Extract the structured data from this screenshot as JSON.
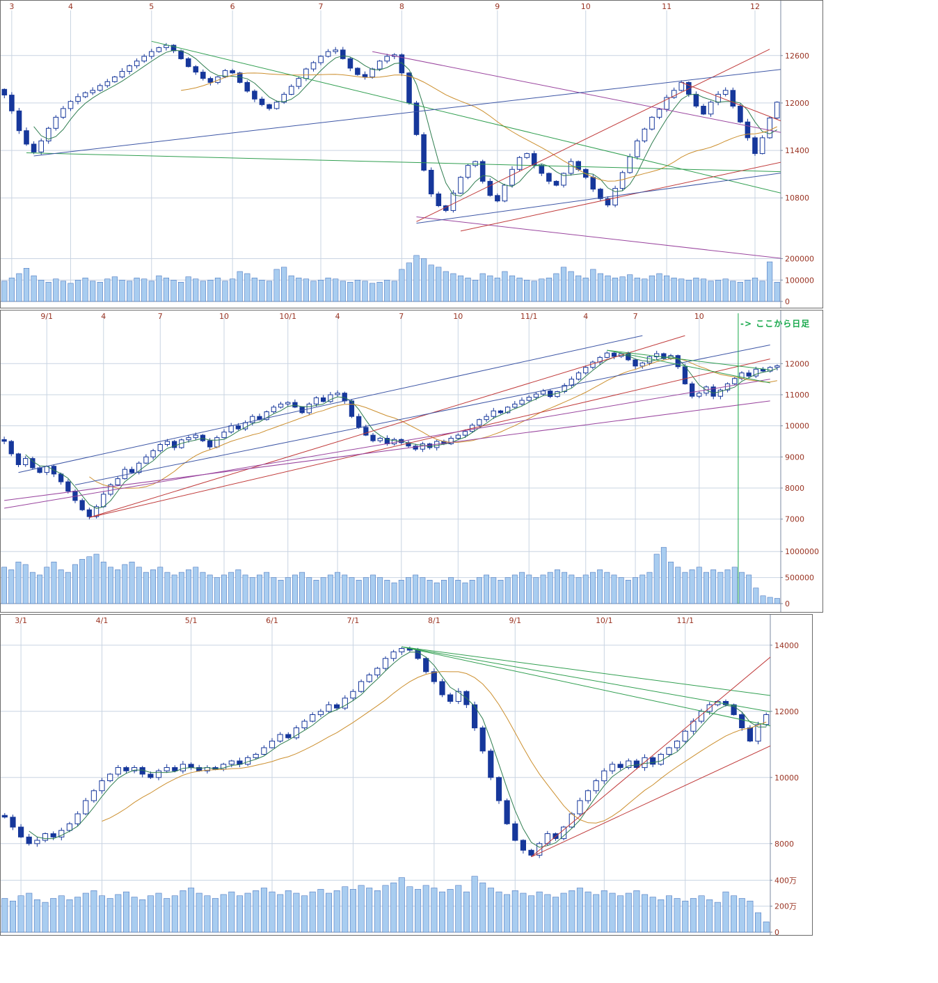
{
  "annotation": {
    "text": "-> ここから日足",
    "color": "#17a84b"
  },
  "toolbar": {
    "icons": [
      {
        "name": "orange-button",
        "color": "#f0a500",
        "border": "#b87e10"
      },
      {
        "name": "grey-button",
        "color": "#efefef",
        "border": "#8a8a8a"
      }
    ]
  },
  "colors": {
    "candle_up": "#ffffff",
    "candle_down": "#16379b",
    "candle_line": "#16379b",
    "volume_fill": "#a9cdf0",
    "volume_stroke": "#4d79c0",
    "grid": "#c9d4e2",
    "axis_text": "#993322",
    "frame": "#7b8aa0"
  },
  "chart_data": [
    {
      "name": "top-daily-candlestick",
      "type": "candlestick",
      "x_labels": [
        {
          "label": "3",
          "index": 1
        },
        {
          "label": "4",
          "index": 9
        },
        {
          "label": "5",
          "index": 20
        },
        {
          "label": "6",
          "index": 31
        },
        {
          "label": "7",
          "index": 43
        },
        {
          "label": "8",
          "index": 54
        },
        {
          "label": "9",
          "index": 67
        },
        {
          "label": "10",
          "index": 79
        },
        {
          "label": "11",
          "index": 90
        },
        {
          "label": "12",
          "index": 102
        }
      ],
      "y_ticks": [
        {
          "label": "12600",
          "value": 12600
        },
        {
          "label": "12000",
          "value": 12000
        },
        {
          "label": "11400",
          "value": 11400
        },
        {
          "label": "10800",
          "value": 10800
        }
      ],
      "vol_ticks": [
        {
          "label": "200000",
          "value": 200
        },
        {
          "label": "100000",
          "value": 100
        },
        {
          "label": "0",
          "value": 0
        }
      ],
      "ylim": [
        10300,
        13100
      ],
      "vol_max": 283,
      "closes": [
        12100,
        11900,
        11650,
        11480,
        11380,
        11520,
        11680,
        11820,
        11930,
        12020,
        12080,
        12130,
        12160,
        12220,
        12270,
        12330,
        12400,
        12470,
        12530,
        12590,
        12650,
        12700,
        12730,
        12660,
        12560,
        12460,
        12390,
        12310,
        12260,
        12330,
        12410,
        12380,
        12260,
        12150,
        12050,
        11980,
        11930,
        12010,
        12110,
        12210,
        12310,
        12430,
        12510,
        12590,
        12650,
        12670,
        12560,
        12440,
        12360,
        12330,
        12430,
        12530,
        12590,
        12610,
        12380,
        12000,
        11600,
        11150,
        10850,
        10700,
        10640,
        10860,
        11060,
        11210,
        11260,
        11010,
        10830,
        10760,
        10960,
        11160,
        11310,
        11360,
        11210,
        11110,
        11010,
        10960,
        11110,
        11260,
        11160,
        11060,
        10910,
        10790,
        10710,
        10920,
        11120,
        11320,
        11520,
        11670,
        11820,
        11920,
        12070,
        12160,
        12260,
        12110,
        11960,
        11860,
        12010,
        12110,
        12160,
        11960,
        11760,
        11560,
        11360,
        11560,
        11810,
        12010
      ],
      "volumes": [
        95,
        110,
        130,
        155,
        120,
        100,
        90,
        105,
        95,
        85,
        100,
        110,
        95,
        90,
        105,
        115,
        100,
        95,
        110,
        105,
        95,
        120,
        110,
        100,
        90,
        115,
        105,
        95,
        100,
        110,
        95,
        105,
        140,
        130,
        110,
        100,
        95,
        150,
        160,
        120,
        110,
        105,
        95,
        100,
        110,
        105,
        95,
        90,
        100,
        95,
        85,
        90,
        100,
        95,
        150,
        180,
        215,
        200,
        170,
        160,
        140,
        130,
        120,
        110,
        100,
        130,
        120,
        110,
        140,
        120,
        110,
        100,
        95,
        105,
        110,
        130,
        160,
        140,
        120,
        110,
        150,
        130,
        120,
        110,
        115,
        125,
        110,
        105,
        120,
        130,
        120,
        110,
        105,
        100,
        110,
        105,
        95,
        100,
        105,
        95,
        90,
        100,
        110,
        95,
        185,
        90
      ],
      "ma": [
        {
          "period": 5,
          "color": "#2e7d4f"
        },
        {
          "period": 25,
          "color": "#cc8f2e"
        }
      ],
      "trendlines": [
        [
          20,
          12780,
          106,
          10850,
          "#2f9e4f"
        ],
        [
          3,
          11370,
          106,
          11130,
          "#2f9e4f"
        ],
        [
          50,
          12650,
          107,
          11600,
          "#99449e"
        ],
        [
          56,
          10560,
          107,
          10020,
          "#99449e"
        ],
        [
          56,
          10500,
          104,
          12680,
          "#c03a3a"
        ],
        [
          62,
          10380,
          107,
          11280,
          "#c03a3a"
        ],
        [
          92,
          12260,
          107,
          11720,
          "#c03a3a"
        ],
        [
          4,
          11330,
          106,
          12430,
          "#3c55a5"
        ],
        [
          56,
          10480,
          106,
          11120,
          "#3c55a5"
        ]
      ],
      "vlines": [],
      "seed": 3
    },
    {
      "name": "middle-weekly-candlestick",
      "type": "candlestick",
      "x_labels": [
        {
          "label": "9/1",
          "index": 6
        },
        {
          "label": "4",
          "index": 14
        },
        {
          "label": "7",
          "index": 22
        },
        {
          "label": "10",
          "index": 31
        },
        {
          "label": "10/1",
          "index": 40
        },
        {
          "label": "4",
          "index": 47
        },
        {
          "label": "7",
          "index": 56
        },
        {
          "label": "10",
          "index": 64
        },
        {
          "label": "11/1",
          "index": 74
        },
        {
          "label": "4",
          "index": 82
        },
        {
          "label": "7",
          "index": 89
        },
        {
          "label": "10",
          "index": 98
        }
      ],
      "y_ticks": [
        {
          "label": "12000",
          "value": 12000
        },
        {
          "label": "11000",
          "value": 11000
        },
        {
          "label": "10000",
          "value": 10000
        },
        {
          "label": "9000",
          "value": 9000
        },
        {
          "label": "8000",
          "value": 8000
        },
        {
          "label": "7000",
          "value": 7000
        }
      ],
      "vol_ticks": [
        {
          "label": "1000000",
          "value": 1000
        },
        {
          "label": "500000",
          "value": 500
        },
        {
          "label": "0",
          "value": 0
        }
      ],
      "ylim": [
        6500,
        13350
      ],
      "vol_max": 1150,
      "closes": [
        9500,
        9100,
        8750,
        8950,
        8650,
        8500,
        8700,
        8450,
        8200,
        7900,
        7600,
        7300,
        7080,
        7400,
        7800,
        8100,
        8300,
        8600,
        8500,
        8800,
        9000,
        9200,
        9400,
        9500,
        9300,
        9550,
        9620,
        9700,
        9520,
        9320,
        9620,
        9800,
        10000,
        9900,
        10100,
        10300,
        10200,
        10450,
        10600,
        10700,
        10750,
        10600,
        10420,
        10700,
        10900,
        10780,
        11000,
        11050,
        10800,
        10300,
        9950,
        9700,
        9520,
        9600,
        9420,
        9560,
        9460,
        9350,
        9250,
        9420,
        9300,
        9500,
        9420,
        9600,
        9700,
        9820,
        10020,
        10200,
        10300,
        10480,
        10420,
        10600,
        10700,
        10820,
        10920,
        11020,
        11120,
        10940,
        11100,
        11300,
        11500,
        11700,
        11880,
        12050,
        12200,
        12340,
        12230,
        12320,
        12120,
        11920,
        12020,
        12220,
        12320,
        12160,
        12260,
        11900,
        11350,
        10950,
        11050,
        11250,
        10950,
        11150,
        11350,
        11520,
        11700,
        11600,
        11820,
        11760,
        11880,
        11930
      ],
      "volumes": [
        700,
        650,
        800,
        750,
        600,
        550,
        700,
        800,
        650,
        600,
        750,
        850,
        900,
        950,
        800,
        700,
        650,
        750,
        800,
        700,
        600,
        650,
        700,
        600,
        550,
        600,
        650,
        700,
        600,
        550,
        500,
        550,
        600,
        650,
        550,
        500,
        550,
        600,
        500,
        450,
        500,
        550,
        600,
        500,
        450,
        500,
        550,
        600,
        550,
        500,
        450,
        500,
        550,
        500,
        450,
        400,
        450,
        500,
        550,
        500,
        450,
        400,
        450,
        500,
        450,
        400,
        450,
        500,
        550,
        500,
        450,
        500,
        550,
        600,
        550,
        500,
        550,
        600,
        650,
        600,
        550,
        500,
        550,
        600,
        650,
        600,
        550,
        500,
        450,
        500,
        550,
        600,
        950,
        1080,
        800,
        700,
        600,
        650,
        700,
        600,
        650,
        600,
        650,
        700,
        600,
        550,
        300,
        150,
        120,
        100
      ],
      "ma": [
        {
          "period": 4,
          "color": "#2e7d4f"
        },
        {
          "period": 13,
          "color": "#cc8f2e"
        }
      ],
      "trendlines": [
        [
          12,
          7050,
          108,
          12150,
          "#c03a3a"
        ],
        [
          12,
          7050,
          96,
          12900,
          "#c03a3a"
        ],
        [
          0,
          7350,
          108,
          11500,
          "#99449e"
        ],
        [
          0,
          7600,
          108,
          10800,
          "#99449e"
        ],
        [
          2,
          8500,
          90,
          12900,
          "#3c55a5"
        ],
        [
          10,
          8100,
          108,
          12600,
          "#3c55a5"
        ],
        [
          85,
          12430,
          108,
          11800,
          "#2f9e4f"
        ],
        [
          85,
          12430,
          108,
          11380,
          "#2f9e4f"
        ]
      ],
      "vlines": [
        {
          "index": 103.5,
          "color": "#17a84b"
        }
      ],
      "seed": 5
    },
    {
      "name": "bottom-longterm-candlestick",
      "type": "candlestick",
      "x_labels": [
        {
          "label": "3/1",
          "index": 2
        },
        {
          "label": "4/1",
          "index": 12
        },
        {
          "label": "5/1",
          "index": 23
        },
        {
          "label": "6/1",
          "index": 33
        },
        {
          "label": "7/1",
          "index": 43
        },
        {
          "label": "8/1",
          "index": 53
        },
        {
          "label": "9/1",
          "index": 63
        },
        {
          "label": "10/1",
          "index": 74
        },
        {
          "label": "11/1",
          "index": 84
        }
      ],
      "y_ticks": [
        {
          "label": "14000",
          "value": 14000
        },
        {
          "label": "12000",
          "value": 12000
        },
        {
          "label": "10000",
          "value": 10000
        },
        {
          "label": "8000",
          "value": 8000
        }
      ],
      "vol_ticks": [
        {
          "label": "400万",
          "value": 400
        },
        {
          "label": "200万",
          "value": 200
        },
        {
          "label": "0",
          "value": 0
        }
      ],
      "ylim": [
        7300,
        14500
      ],
      "vol_max": 450,
      "closes": [
        8800,
        8500,
        8200,
        8000,
        8100,
        8300,
        8200,
        8400,
        8600,
        8900,
        9300,
        9600,
        9900,
        10100,
        10300,
        10200,
        10300,
        10100,
        10000,
        10200,
        10300,
        10200,
        10400,
        10300,
        10200,
        10300,
        10250,
        10400,
        10500,
        10400,
        10600,
        10700,
        10900,
        11100,
        11300,
        11200,
        11500,
        11700,
        11900,
        12000,
        12200,
        12100,
        12400,
        12600,
        12900,
        13100,
        13300,
        13600,
        13800,
        13900,
        13850,
        13600,
        13200,
        12900,
        12500,
        12300,
        12600,
        12200,
        11500,
        10800,
        10000,
        9300,
        8600,
        8100,
        7800,
        7650,
        8000,
        8300,
        8150,
        8500,
        8900,
        9300,
        9600,
        9900,
        10200,
        10400,
        10300,
        10500,
        10300,
        10600,
        10400,
        10700,
        10900,
        11100,
        11400,
        11700,
        12000,
        12200,
        12300,
        12200,
        11900,
        11500,
        11100,
        11600,
        11900
      ],
      "volumes": [
        260,
        240,
        280,
        300,
        250,
        230,
        260,
        280,
        250,
        270,
        300,
        320,
        280,
        260,
        290,
        310,
        270,
        250,
        280,
        300,
        260,
        280,
        320,
        340,
        300,
        280,
        260,
        290,
        310,
        280,
        300,
        320,
        340,
        310,
        290,
        320,
        300,
        280,
        310,
        330,
        300,
        320,
        350,
        330,
        360,
        340,
        320,
        360,
        380,
        420,
        350,
        330,
        360,
        340,
        310,
        330,
        360,
        310,
        430,
        380,
        340,
        310,
        290,
        320,
        300,
        280,
        310,
        290,
        270,
        300,
        320,
        340,
        310,
        290,
        320,
        300,
        280,
        300,
        320,
        290,
        270,
        250,
        280,
        260,
        240,
        260,
        280,
        250,
        230,
        310,
        280,
        260,
        240,
        150,
        80
      ],
      "ma": [
        {
          "period": 4,
          "color": "#2e7d4f"
        },
        {
          "period": 13,
          "color": "#cc8f2e"
        }
      ],
      "trendlines": [
        [
          49,
          13950,
          97,
          12400,
          "#2f9e4f"
        ],
        [
          49,
          13950,
          97,
          11880,
          "#2f9e4f"
        ],
        [
          49,
          13950,
          97,
          11430,
          "#2f9e4f"
        ],
        [
          65,
          7600,
          97,
          14150,
          "#c03a3a"
        ],
        [
          65,
          7600,
          98,
          11350,
          "#c03a3a"
        ]
      ],
      "vlines": [],
      "seed": 9
    }
  ]
}
